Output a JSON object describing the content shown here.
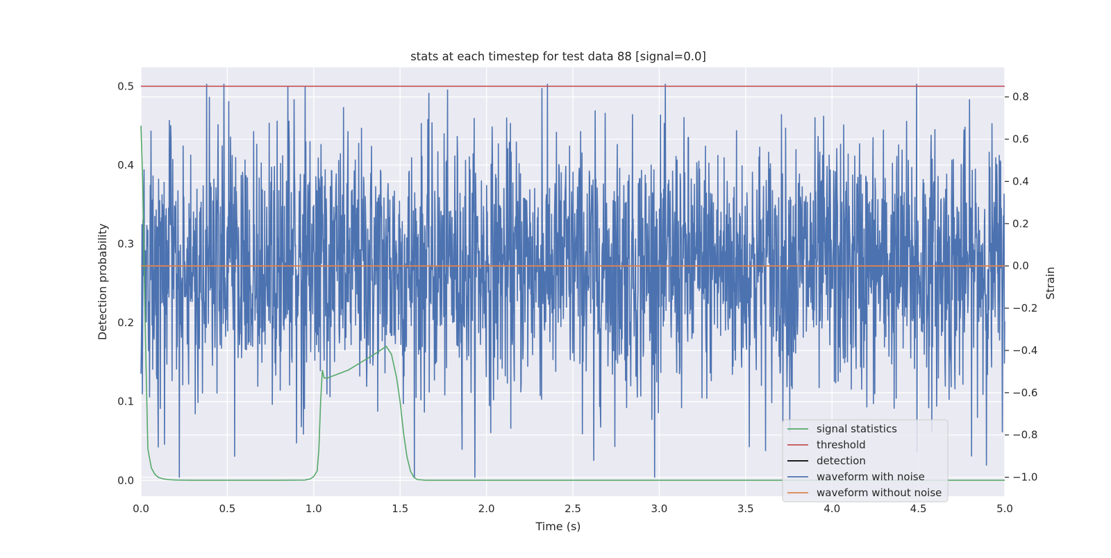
{
  "chart_data": {
    "type": "line",
    "title": "stats at each timestep for test data 88 [signal=0.0]",
    "xlabel": "Time (s)",
    "ylabel": "Detection probability",
    "y2label": "Strain",
    "xlim": [
      0.0,
      5.0
    ],
    "ylim": [
      -0.02,
      0.524
    ],
    "y2lim": [
      -1.09,
      0.94
    ],
    "grid": true,
    "legend_position": "lower-right",
    "x_ticks": [
      "0.0",
      "0.5",
      "1.0",
      "1.5",
      "2.0",
      "2.5",
      "3.0",
      "3.5",
      "4.0",
      "4.5",
      "5.0"
    ],
    "y_ticks": [
      "0.0",
      "0.1",
      "0.2",
      "0.3",
      "0.4",
      "0.5"
    ],
    "y2_ticks": [
      "−1.0",
      "−0.8",
      "−0.6",
      "−0.4",
      "−0.2",
      "0.0",
      "0.2",
      "0.4",
      "0.6",
      "0.8"
    ],
    "series": [
      {
        "name": "signal statistics",
        "axis": "left",
        "color": "#55a868",
        "x": [
          0.0,
          0.01,
          0.02,
          0.03,
          0.04,
          0.06,
          0.08,
          0.1,
          0.13,
          0.16,
          0.2,
          0.3,
          0.5,
          0.8,
          0.95,
          0.98,
          1.0,
          1.02,
          1.03,
          1.04,
          1.05,
          1.06,
          1.08,
          1.2,
          1.35,
          1.42,
          1.45,
          1.48,
          1.5,
          1.52,
          1.54,
          1.56,
          1.58,
          1.6,
          1.65,
          2.0,
          3.0,
          4.0,
          5.0
        ],
        "y": [
          0.45,
          0.38,
          0.25,
          0.14,
          0.04,
          0.016,
          0.008,
          0.004,
          0.002,
          0.001,
          0.0005,
          0.0003,
          0.0003,
          0.0003,
          0.0005,
          0.002,
          0.005,
          0.012,
          0.04,
          0.1,
          0.14,
          0.13,
          0.13,
          0.14,
          0.16,
          0.17,
          0.16,
          0.13,
          0.1,
          0.06,
          0.03,
          0.012,
          0.004,
          0.001,
          0.0003,
          0.0003,
          0.0003,
          0.0003,
          0.0003
        ]
      },
      {
        "name": "threshold",
        "axis": "left",
        "color": "#c44e52",
        "x": [
          0.0,
          5.0
        ],
        "y": [
          0.5,
          0.5
        ]
      },
      {
        "name": "detection",
        "axis": "left",
        "color": "#000000",
        "x": [],
        "y": []
      },
      {
        "name": "waveform with noise",
        "axis": "right",
        "color": "#4c72b0",
        "x_range": [
          0.0,
          5.0
        ],
        "n_samples": 2500,
        "y_range": [
          -1.0,
          0.86
        ],
        "y_std": 0.3,
        "peaks": [
          {
            "x": 0.22,
            "y": -1.0
          },
          {
            "x": 0.85,
            "y": 0.85
          },
          {
            "x": 0.95,
            "y": 0.85
          },
          {
            "x": 2.32,
            "y": 0.84
          },
          {
            "x": 2.62,
            "y": -0.92
          },
          {
            "x": 4.49,
            "y": 0.86
          },
          {
            "x": 4.49,
            "y": -0.88
          }
        ]
      },
      {
        "name": "waveform without noise",
        "axis": "right",
        "color": "#dd8452",
        "x": [
          0.0,
          5.0
        ],
        "y": [
          0.0,
          0.0
        ]
      }
    ]
  }
}
